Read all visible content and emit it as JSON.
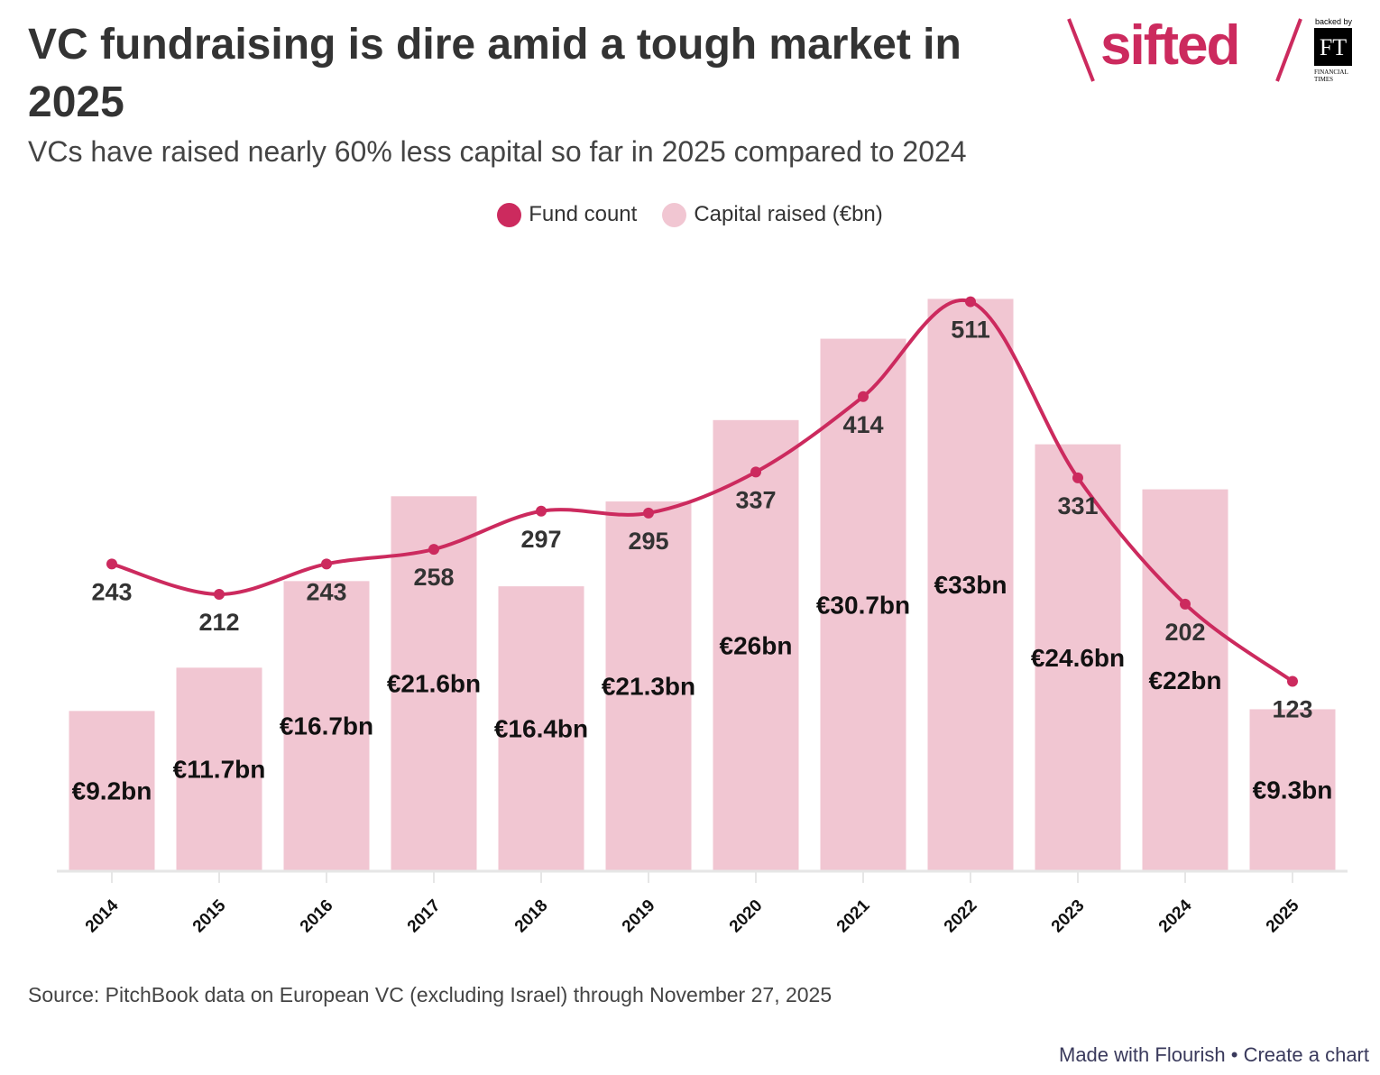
{
  "header": {
    "title": "VC fundraising is dire amid a tough market in 2025",
    "subtitle": "VCs have raised nearly 60% less capital so far in 2025 compared to 2024"
  },
  "logo": {
    "brand": "sifted",
    "backed_by": "backed by",
    "ft": "FT",
    "ft_name_1": "FINANCIAL",
    "ft_name_2": "TIMES",
    "brand_color": "#cc2a5e"
  },
  "chart_data": {
    "type": "bar+line",
    "categories": [
      "2014",
      "2015",
      "2016",
      "2017",
      "2018",
      "2019",
      "2020",
      "2021",
      "2022",
      "2023",
      "2024",
      "2025"
    ],
    "series": [
      {
        "name": "Fund count",
        "type": "line",
        "color": "#cc2a5e",
        "values": [
          243,
          212,
          243,
          258,
          297,
          295,
          337,
          414,
          511,
          331,
          202,
          123
        ],
        "labels": [
          "243",
          "212",
          "243",
          "258",
          "297",
          "295",
          "337",
          "414",
          "511",
          "331",
          "202",
          "123"
        ]
      },
      {
        "name": "Capital raised (€bn)",
        "type": "bar",
        "color": "#f1c6d2",
        "values": [
          9.2,
          11.7,
          16.7,
          21.6,
          16.4,
          21.3,
          26,
          30.7,
          33,
          24.6,
          22,
          9.3
        ],
        "labels": [
          "€9.2bn",
          "€11.7bn",
          "€16.7bn",
          "€21.6bn",
          "€16.4bn",
          "€21.3bn",
          "€26bn",
          "€30.7bn",
          "€33bn",
          "€24.6bn",
          "€22bn",
          "€9.3bn"
        ]
      }
    ],
    "legend_position": "top-center",
    "grid": false,
    "line_smooth": true
  },
  "source": "Source: PitchBook data on European VC (excluding Israel) through November 27, 2025",
  "footer": {
    "made_with": "Made with Flourish",
    "separator": "•",
    "create": "Create a chart"
  }
}
